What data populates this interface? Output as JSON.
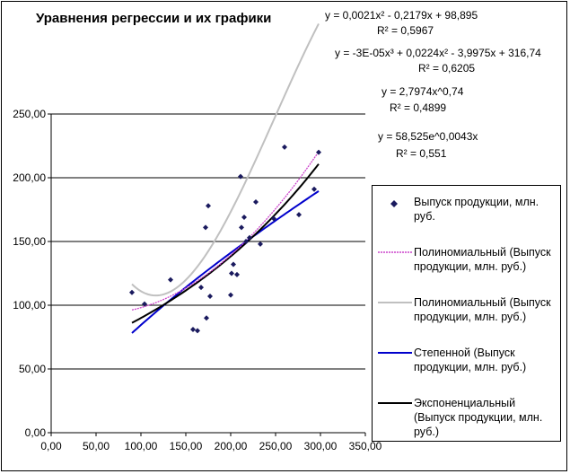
{
  "chart_data": {
    "type": "scatter",
    "title": "Уравнения регрессии и их графики",
    "xlabel": "",
    "ylabel": "",
    "xlim": [
      0,
      350
    ],
    "ylim": [
      0,
      250
    ],
    "x_ticks": [
      "0,00",
      "50,00",
      "100,00",
      "150,00",
      "200,00",
      "250,00",
      "300,00",
      "350,00"
    ],
    "y_ticks": [
      "0,00",
      "50,00",
      "100,00",
      "150,00",
      "200,00",
      "250,00"
    ],
    "grid": "horizontal",
    "legend_position": "right",
    "series": [
      {
        "name": "Выпуск продукции, млн. руб.",
        "kind": "points",
        "color": "#1a1a5e",
        "points": [
          [
            90,
            110
          ],
          [
            104,
            101
          ],
          [
            133,
            120
          ],
          [
            158,
            81
          ],
          [
            163,
            80
          ],
          [
            167,
            114
          ],
          [
            172,
            161
          ],
          [
            173,
            90
          ],
          [
            175,
            178
          ],
          [
            177,
            107
          ],
          [
            200,
            108
          ],
          [
            201,
            125
          ],
          [
            203,
            132
          ],
          [
            207,
            124
          ],
          [
            211,
            201
          ],
          [
            212,
            161
          ],
          [
            215,
            169
          ],
          [
            217,
            150
          ],
          [
            221,
            153
          ],
          [
            228,
            181
          ],
          [
            233,
            148
          ],
          [
            248,
            168
          ],
          [
            260,
            224
          ],
          [
            276,
            171
          ],
          [
            293,
            191
          ],
          [
            298,
            220
          ]
        ]
      },
      {
        "name": "Полиномиальный (Выпуск продукции, млн. руб.)",
        "kind": "poly2",
        "color": "#cc44cc"
      },
      {
        "name": "Полиномиальный (Выпуск продукции, млн. руб.)",
        "kind": "poly3",
        "color": "#c0c0c0"
      },
      {
        "name": "Степенной (Выпуск продукции, млн. руб.)",
        "kind": "power",
        "color": "#0000cc"
      },
      {
        "name": "Экспоненциальный (Выпуск продукции, млн. руб.)",
        "kind": "exp",
        "color": "#000000"
      }
    ],
    "annotations": {
      "eq1": "y = 0,0021x² - 0,2179x + 98,895",
      "r1": "R² = 0,5967",
      "eq2": "y = -3E-05x³ + 0,0224x² - 3,9975x + 316,74",
      "r2": "R² = 0,6205",
      "eq3": "y = 2,7974x^0,74",
      "r3": "R² = 0,4899",
      "eq4": "y = 58,525e^0,0043x",
      "r4": "R² = 0,551"
    }
  }
}
